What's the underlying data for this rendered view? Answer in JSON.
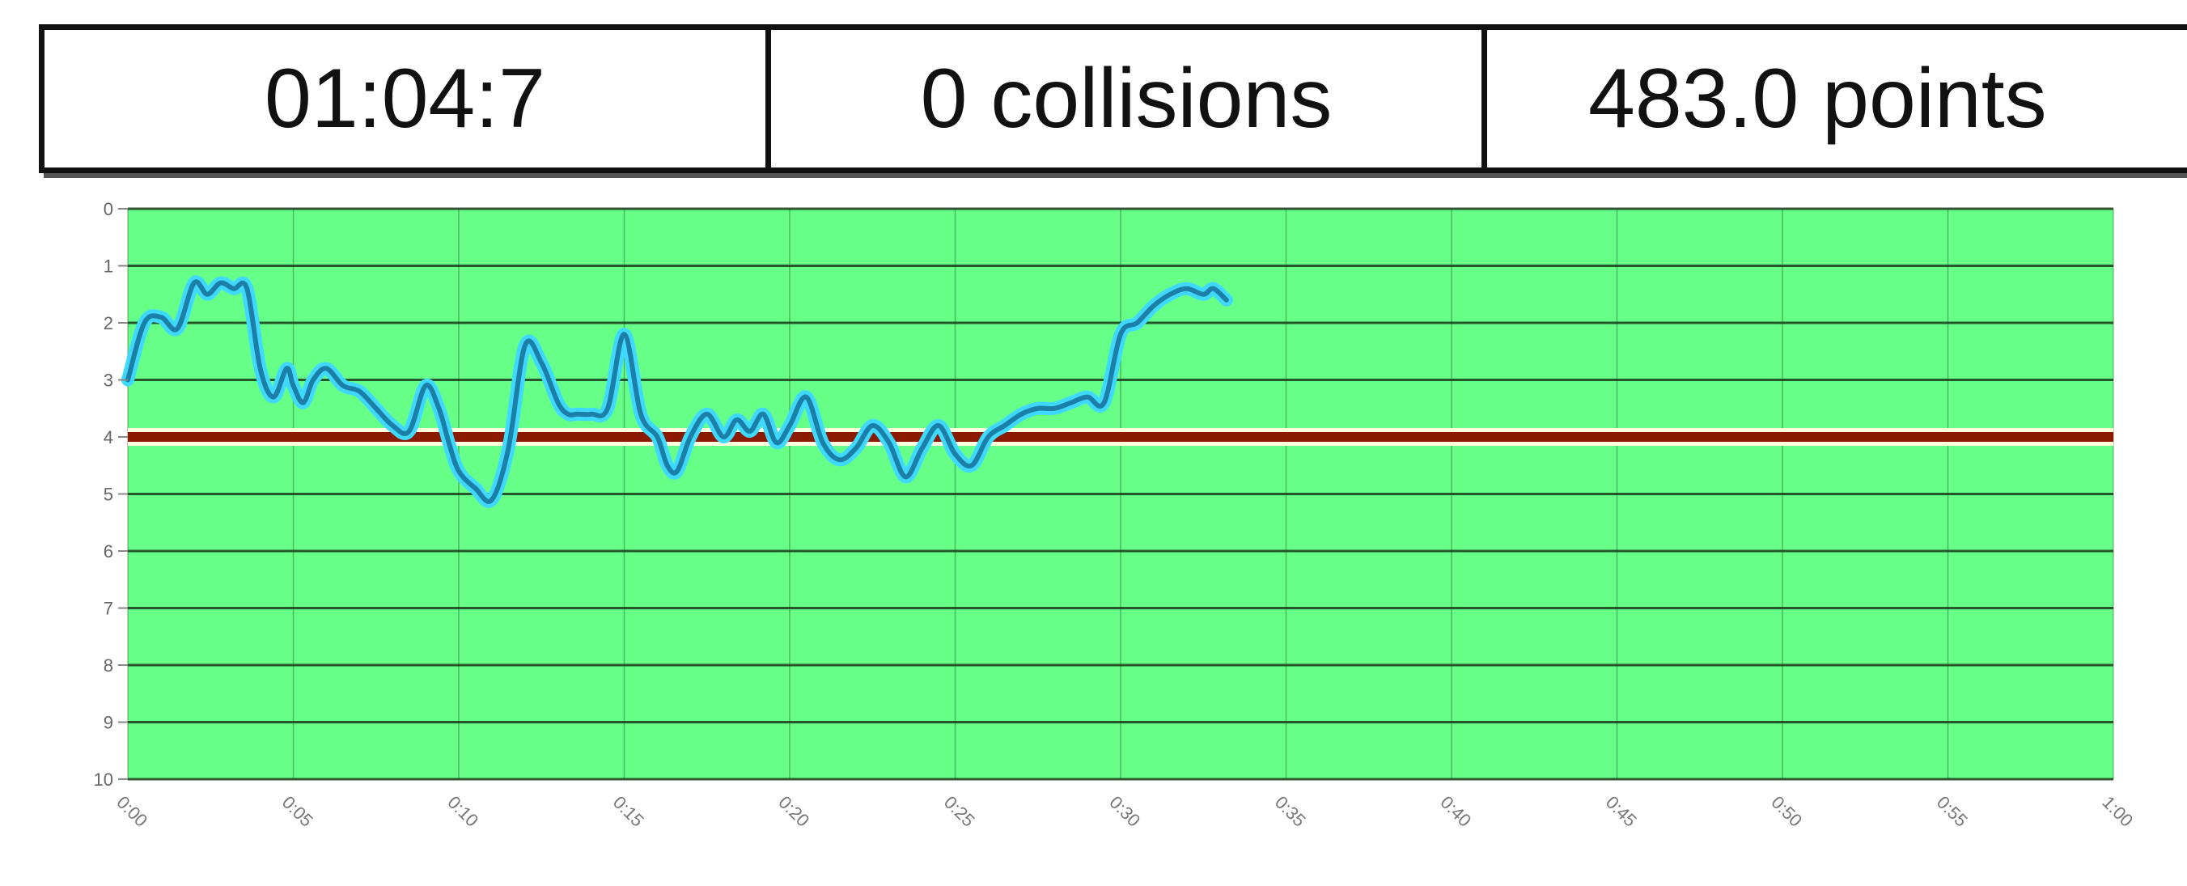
{
  "status": {
    "timer": "01:04:7",
    "collisions": "0 collisions",
    "points": "483.0 points"
  },
  "chart_data": {
    "type": "line",
    "title": "",
    "xlabel": "",
    "ylabel": "",
    "ylim": [
      0,
      10
    ],
    "y_inverted": true,
    "yticks": [
      "0",
      "1",
      "2",
      "3",
      "4",
      "5",
      "6",
      "7",
      "8",
      "9",
      "10"
    ],
    "xticks": [
      "0:00",
      "0:05",
      "0:10",
      "0:15",
      "0:20",
      "0:25",
      "0:30",
      "0:35",
      "0:40",
      "0:45",
      "0:50",
      "0:55",
      "1:00"
    ],
    "grid": true,
    "legend": "none",
    "reference_line": {
      "y": 4
    },
    "series": [
      {
        "x": [
          0,
          0.5,
          1,
          1.5,
          2,
          2.4,
          2.8,
          3.2,
          3.6,
          4,
          4.4,
          4.8,
          5,
          5.3,
          5.6,
          6,
          6.5,
          7,
          7.5,
          8,
          8.5,
          9,
          9.4,
          9.7,
          10,
          10.5,
          11,
          11.5,
          12,
          12.5,
          13,
          13.3,
          13.6,
          14,
          14.5,
          15,
          15.5,
          16,
          16.3,
          16.6,
          17,
          17.5,
          18,
          18.4,
          18.8,
          19.2,
          19.6,
          20,
          20.5,
          21,
          21.5,
          22,
          22.5,
          23,
          23.5,
          24,
          24.5,
          25,
          25.5,
          26,
          26.5,
          27,
          27.5,
          28,
          28.5,
          29,
          29.5,
          30,
          30.5,
          31,
          31.5,
          32,
          32.5,
          32.8,
          33.2
        ],
        "values": [
          3.0,
          2.0,
          1.9,
          2.1,
          1.3,
          1.5,
          1.3,
          1.4,
          1.4,
          2.8,
          3.3,
          2.8,
          3.1,
          3.4,
          3.0,
          2.8,
          3.1,
          3.2,
          3.5,
          3.8,
          3.9,
          3.1,
          3.5,
          4.1,
          4.6,
          4.9,
          5.1,
          4.2,
          2.4,
          2.7,
          3.4,
          3.6,
          3.6,
          3.6,
          3.5,
          2.2,
          3.6,
          4.0,
          4.5,
          4.6,
          4.0,
          3.6,
          4.0,
          3.7,
          3.9,
          3.6,
          4.1,
          3.8,
          3.3,
          4.1,
          4.4,
          4.2,
          3.8,
          4.1,
          4.7,
          4.2,
          3.8,
          4.3,
          4.5,
          4.0,
          3.8,
          3.6,
          3.5,
          3.5,
          3.4,
          3.3,
          3.4,
          2.2,
          2.0,
          1.7,
          1.5,
          1.4,
          1.5,
          1.4,
          1.6
        ]
      }
    ],
    "colors": {
      "plot_background": "#66FF88",
      "grid": "#1A3A1A",
      "reference_line": "#8B1A00",
      "reference_glow": "#FFFFE0",
      "series_line": "#1C7FA8",
      "series_glow": "#3FD9FF"
    }
  }
}
